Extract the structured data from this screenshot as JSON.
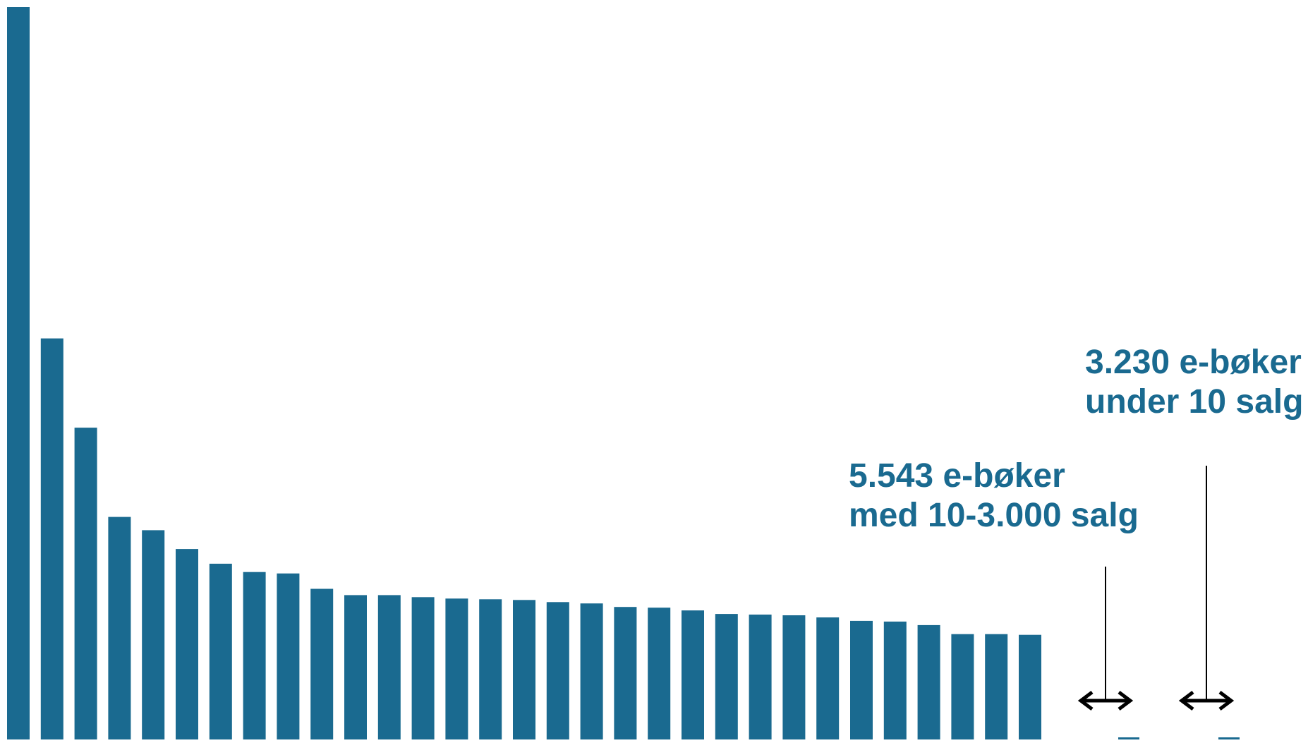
{
  "chart_data": {
    "type": "bar",
    "color": "#1a6a90",
    "annotation_color": "#1a6a90",
    "arrow_color": "#000000",
    "values": [
      1050,
      575,
      447,
      319,
      300,
      273,
      252,
      240,
      238,
      216,
      207,
      207,
      204,
      202,
      201,
      200,
      197,
      195,
      190,
      189,
      185,
      180,
      179,
      178,
      175,
      170,
      169,
      164,
      151,
      151,
      150
    ],
    "tail_markers": [
      {
        "value": 2
      },
      {
        "value": 2
      }
    ],
    "ylim": [
      0,
      1060
    ],
    "grid": false,
    "annotations": [
      {
        "line1": "5.543 e-bøker",
        "line2": "med 10-3.000 salg"
      },
      {
        "line1": "3.230 e-bøker",
        "line2": "under 10 salg"
      }
    ]
  }
}
